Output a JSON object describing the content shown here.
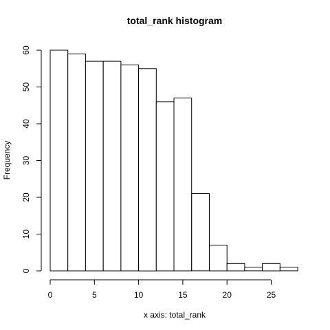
{
  "chart_data": {
    "type": "bar",
    "title": "total_rank histogram",
    "xlabel": "x axis: total_rank",
    "ylabel": "Frequency",
    "bin_edges": [
      0,
      2,
      4,
      6,
      8,
      10,
      12,
      14,
      16,
      18,
      20,
      22,
      24,
      26,
      28
    ],
    "values": [
      60,
      59,
      57,
      57,
      56,
      55,
      46,
      47,
      21,
      7,
      2,
      1,
      2,
      1
    ],
    "x_ticks": [
      0,
      5,
      10,
      15,
      20,
      25
    ],
    "y_ticks": [
      0,
      10,
      20,
      30,
      40,
      50,
      60
    ],
    "xlim": [
      0,
      28
    ],
    "ylim": [
      0,
      60
    ],
    "grid": false,
    "legend": "none"
  }
}
